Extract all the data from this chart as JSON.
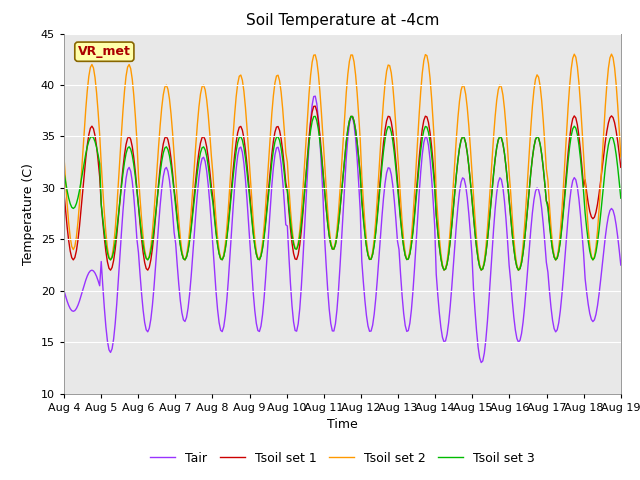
{
  "title": "Soil Temperature at -4cm",
  "xlabel": "Time",
  "ylabel": "Temperature (C)",
  "ylim": [
    10,
    45
  ],
  "yticks": [
    10,
    15,
    20,
    25,
    30,
    35,
    40,
    45
  ],
  "x_tick_labels": [
    "Aug 4",
    "Aug 5",
    "Aug 6",
    "Aug 7",
    "Aug 8",
    "Aug 9",
    "Aug 10",
    "Aug 11",
    "Aug 12",
    "Aug 13",
    "Aug 14",
    "Aug 15",
    "Aug 16",
    "Aug 17",
    "Aug 18",
    "Aug 19"
  ],
  "colors": {
    "Tair": "#9933FF",
    "Tsoil1": "#CC0000",
    "Tsoil2": "#FF9900",
    "Tsoil3": "#00BB00"
  },
  "legend_labels": [
    "Tair",
    "Tsoil set 1",
    "Tsoil set 2",
    "Tsoil set 3"
  ],
  "annotation_text": "VR_met",
  "annotation_color": "#AA0000",
  "annotation_bg": "#FFFFAA",
  "fig_bg": "#FFFFFF",
  "plot_bg": "#E8E8E8",
  "grid_color": "#FFFFFF",
  "title_fontsize": 11,
  "axis_fontsize": 9,
  "tick_fontsize": 8,
  "linewidth": 1.0
}
